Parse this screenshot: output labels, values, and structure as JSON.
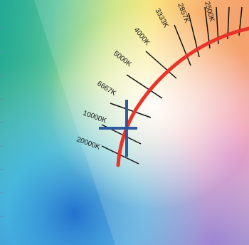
{
  "diagram": {
    "colors": {
      "planckian_locus": "#e8342a",
      "crosshair": "#2f5aa0",
      "isotemperature_lines": "#111111",
      "left_tick_marks": "#5a8fb0"
    },
    "cct_labels": [
      {
        "text": "20000K"
      },
      {
        "text": "10000K"
      },
      {
        "text": "6667K"
      },
      {
        "text": "5000K"
      },
      {
        "text": "4000K"
      },
      {
        "text": "3333K"
      },
      {
        "text": "2857K"
      },
      {
        "text": "2500K"
      }
    ]
  }
}
